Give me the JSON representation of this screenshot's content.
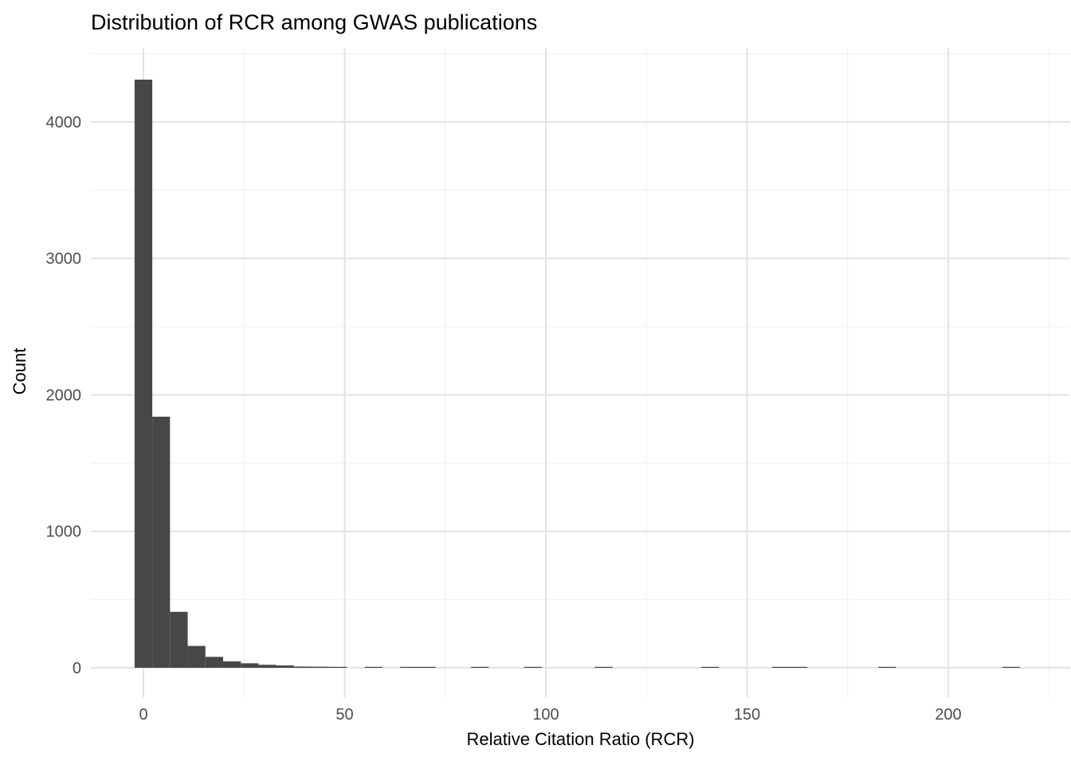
{
  "title": "Distribution of RCR among GWAS publications",
  "axes": {
    "x_label": "Relative Citation Ratio (RCR)",
    "y_label": "Count",
    "x_tick_labels": [
      "0",
      "50",
      "100",
      "150",
      "200"
    ],
    "y_tick_labels": [
      "0",
      "1000",
      "2000",
      "3000",
      "4000"
    ]
  },
  "colors": {
    "background": "#ffffff",
    "bar_fill": "#474747",
    "grid_major": "#e3e3e3",
    "grid_minor": "#efefef",
    "tick_label": "#4d4d4d",
    "title_text": "#000000"
  },
  "chart_data": {
    "type": "bar",
    "subtype": "histogram",
    "title": "Distribution of RCR among GWAS publications",
    "xlabel": "Relative Citation Ratio (RCR)",
    "ylabel": "Count",
    "bin_width": 4.4,
    "bins": [
      {
        "center": 0,
        "count": 4310
      },
      {
        "center": 4.4,
        "count": 1840
      },
      {
        "center": 8.8,
        "count": 410
      },
      {
        "center": 13.2,
        "count": 160
      },
      {
        "center": 17.6,
        "count": 80
      },
      {
        "center": 22,
        "count": 47
      },
      {
        "center": 26.4,
        "count": 33
      },
      {
        "center": 30.8,
        "count": 22
      },
      {
        "center": 35.2,
        "count": 17
      },
      {
        "center": 39.6,
        "count": 9
      },
      {
        "center": 44,
        "count": 8
      },
      {
        "center": 48.4,
        "count": 2
      },
      {
        "center": 57.2,
        "count": 3
      },
      {
        "center": 66,
        "count": 3
      },
      {
        "center": 70.4,
        "count": 2
      },
      {
        "center": 83.6,
        "count": 2
      },
      {
        "center": 96.8,
        "count": 2
      },
      {
        "center": 114.4,
        "count": 1
      },
      {
        "center": 140.8,
        "count": 1
      },
      {
        "center": 158.4,
        "count": 1
      },
      {
        "center": 162.8,
        "count": 1
      },
      {
        "center": 184.8,
        "count": 1
      },
      {
        "center": 215.6,
        "count": 1
      }
    ],
    "x_ticks": [
      0,
      50,
      100,
      150,
      200
    ],
    "y_ticks": [
      0,
      1000,
      2000,
      3000,
      4000
    ],
    "x_minor_gridlines": [
      25,
      75,
      125,
      175,
      225
    ],
    "y_minor_gridlines": [
      500,
      1500,
      2500,
      3500,
      4500
    ],
    "xlim": [
      -13.1,
      230.2
    ],
    "ylim": [
      -215,
      4545
    ],
    "grid": true,
    "legend": false,
    "theme": "minimal-white"
  }
}
